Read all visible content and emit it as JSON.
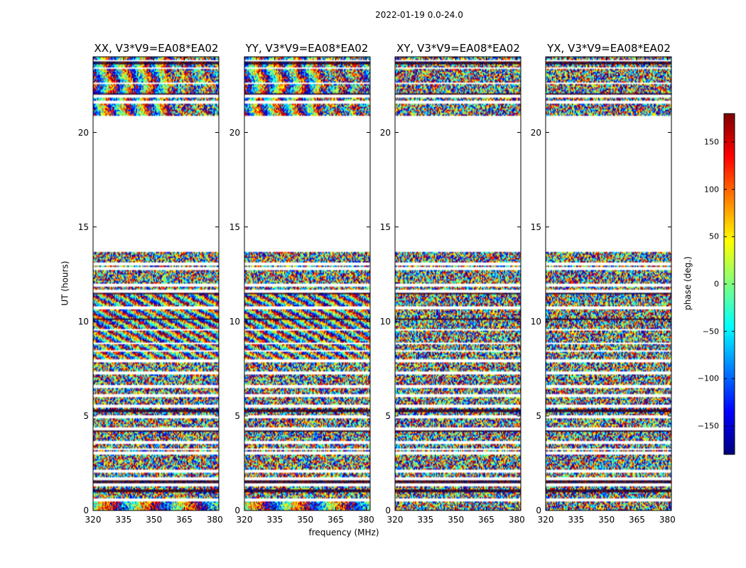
{
  "figure_title": "2022-01-19 0.0-24.0",
  "colors": {
    "colormap": [
      "#00007f",
      "#0000ff",
      "#007fff",
      "#00ffff",
      "#7fff7f",
      "#ffff00",
      "#ff7f00",
      "#ff0000",
      "#7f0000"
    ],
    "frame": "#000000",
    "background": "#ffffff"
  },
  "chart_data": {
    "type": "heatmap",
    "title": "2022-01-19 0.0-24.0",
    "xlabel": "frequency (MHz)",
    "ylabel": "UT (hours)",
    "xlim": [
      320,
      382
    ],
    "ylim": [
      0,
      24
    ],
    "xticks": [
      320,
      335,
      350,
      365,
      380
    ],
    "xtick_labels": [
      "320",
      "335",
      "350",
      "365",
      "380"
    ],
    "yticks": [
      0,
      5,
      10,
      15,
      20
    ],
    "ytick_labels": [
      "0",
      "5",
      "10",
      "15",
      "20"
    ],
    "panels": [
      {
        "title": "XX, V3*V9=EA08*EA02",
        "pattern": "fringes"
      },
      {
        "title": "YY, V3*V9=EA08*EA02",
        "pattern": "fringes"
      },
      {
        "title": "XY, V3*V9=EA08*EA02",
        "pattern": "noise"
      },
      {
        "title": "YX, V3*V9=EA08*EA02",
        "pattern": "noise"
      }
    ],
    "data_blocks_ut_hours": [
      [
        0.0,
        13.7
      ],
      [
        20.9,
        24.0
      ]
    ],
    "empty_gap_ut_hours": [
      13.7,
      20.9
    ],
    "colorbar": {
      "label": "phase (deg.)",
      "range": [
        -180,
        180
      ],
      "ticks": [
        150,
        100,
        50,
        0,
        -50,
        -100,
        -150
      ],
      "tick_labels": [
        "150",
        "100",
        "50",
        "0",
        "−50",
        "−100",
        "−150"
      ]
    }
  }
}
